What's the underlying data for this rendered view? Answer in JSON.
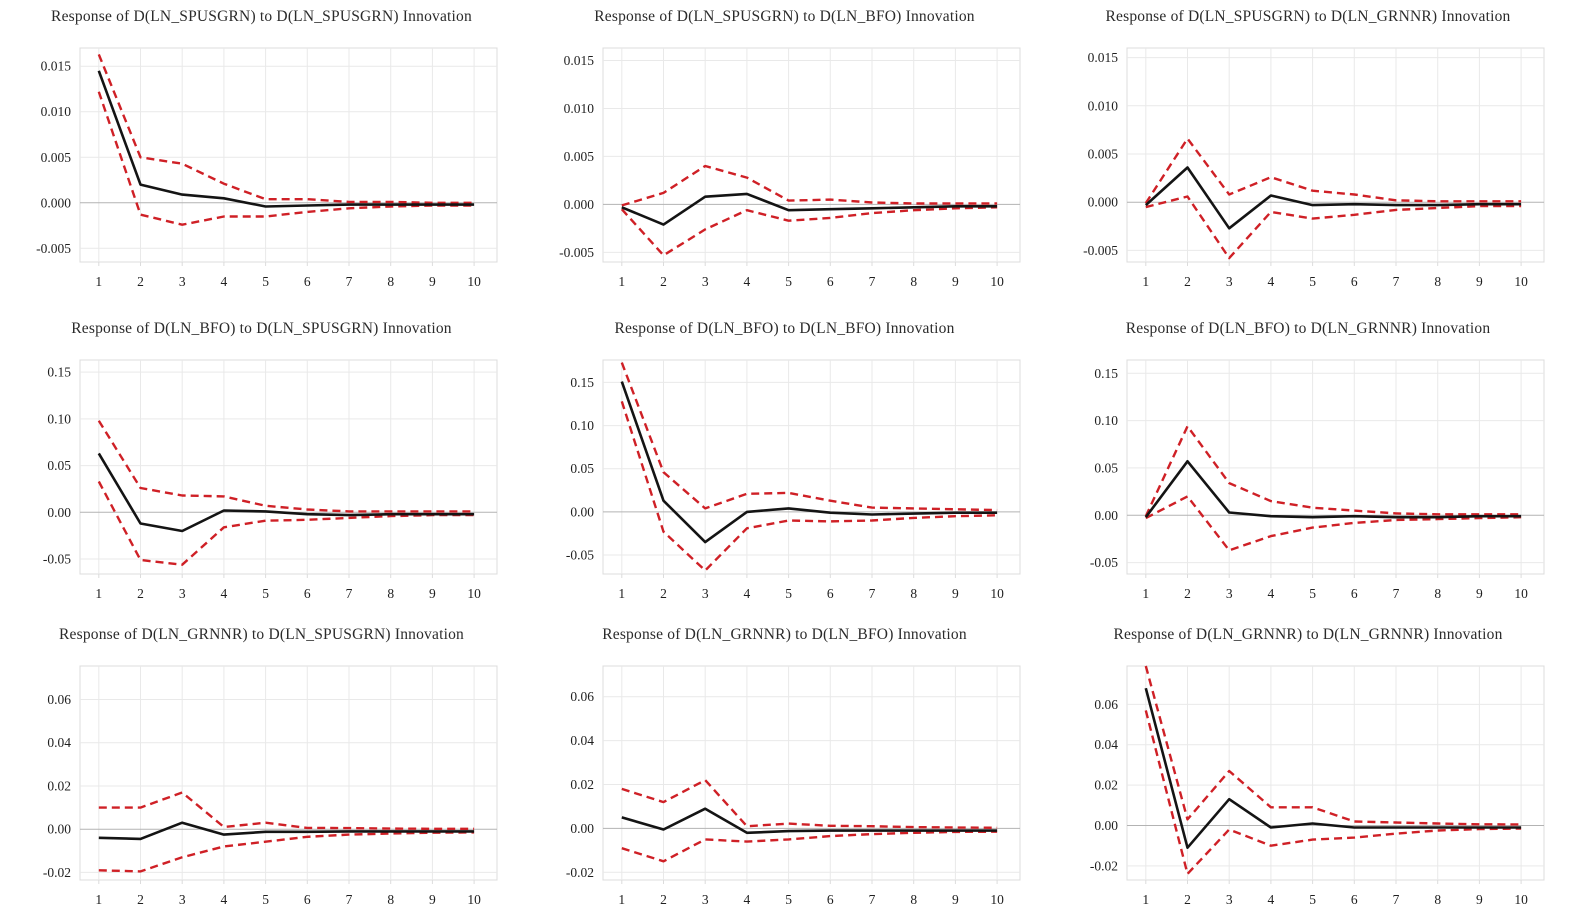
{
  "page": {
    "background": "#ffffff",
    "description_labels": []
  },
  "styles": {
    "line_color": "#141414",
    "band_color": "#cf2026",
    "grid_color": "#e9e9e9",
    "zero_line_color": "#b3b3b3",
    "frame_color": "#dcdcdc",
    "title_color": "#2b2b2b"
  },
  "chart_data": [
    {
      "type": "line",
      "title": "Response of D(LN_SPUSGRN) to D(LN_SPUSGRN) Innovation",
      "x": [
        1,
        2,
        3,
        4,
        5,
        6,
        7,
        8,
        9,
        10
      ],
      "series": [
        {
          "name": "response",
          "values": [
            0.0145,
            0.002,
            0.0009,
            0.0005,
            -0.0004,
            -0.0003,
            -0.0002,
            -0.0002,
            -0.0002,
            -0.0002
          ]
        },
        {
          "name": "upper_band_plus_2se",
          "values": [
            0.0163,
            0.005,
            0.0043,
            0.0021,
            0.0004,
            0.0004,
            0.0001,
            0.0001,
            0.0,
            0.0
          ]
        },
        {
          "name": "lower_band_minus_2se",
          "values": [
            0.0122,
            -0.0013,
            -0.0024,
            -0.0015,
            -0.0015,
            -0.001,
            -0.0006,
            -0.0004,
            -0.0003,
            -0.0003
          ]
        }
      ],
      "ylim": [
        -0.0065,
        0.017
      ],
      "ytick_values": [
        0.015,
        0.01,
        0.005,
        0.0,
        -0.005
      ],
      "ytick_labels": [
        "0.015",
        "0.010",
        "0.005",
        "0.000",
        "-0.005"
      ],
      "grid": true,
      "legend": "none"
    },
    {
      "type": "line",
      "title": "Response of D(LN_SPUSGRN) to D(LN_BFO) Innovation",
      "x": [
        1,
        2,
        3,
        4,
        5,
        6,
        7,
        8,
        9,
        10
      ],
      "series": [
        {
          "name": "response",
          "values": [
            -0.0003,
            -0.0021,
            0.0008,
            0.0011,
            -0.0006,
            -0.0005,
            -0.0004,
            -0.0003,
            -0.0002,
            -0.0002
          ]
        },
        {
          "name": "upper_band_plus_2se",
          "values": [
            -0.0001,
            0.0012,
            0.004,
            0.0028,
            0.0004,
            0.0005,
            0.0002,
            0.0001,
            0.0001,
            0.0001
          ]
        },
        {
          "name": "lower_band_minus_2se",
          "values": [
            -0.0005,
            -0.0053,
            -0.0026,
            -0.0006,
            -0.0017,
            -0.0014,
            -0.0009,
            -0.0006,
            -0.0004,
            -0.0003
          ]
        }
      ],
      "ylim": [
        -0.006,
        0.0163
      ],
      "ytick_values": [
        0.015,
        0.01,
        0.005,
        0.0,
        -0.005
      ],
      "ytick_labels": [
        "0.015",
        "0.010",
        "0.005",
        "0.000",
        "-0.005"
      ],
      "grid": true,
      "legend": "none"
    },
    {
      "type": "line",
      "title": "Response of D(LN_SPUSGRN) to D(LN_GRNNR) Innovation",
      "x": [
        1,
        2,
        3,
        4,
        5,
        6,
        7,
        8,
        9,
        10
      ],
      "series": [
        {
          "name": "response",
          "values": [
            -0.0003,
            0.0036,
            -0.0027,
            0.0007,
            -0.0003,
            -0.0002,
            -0.0003,
            -0.0003,
            -0.0002,
            -0.0002
          ]
        },
        {
          "name": "upper_band_plus_2se",
          "values": [
            -0.0001,
            0.0066,
            0.0008,
            0.0026,
            0.0012,
            0.0008,
            0.0002,
            0.0001,
            0.0001,
            0.0001
          ]
        },
        {
          "name": "lower_band_minus_2se",
          "values": [
            -0.0005,
            0.0006,
            -0.0058,
            -0.001,
            -0.0017,
            -0.0013,
            -0.0008,
            -0.0006,
            -0.0004,
            -0.0004
          ]
        }
      ],
      "ylim": [
        -0.0062,
        0.016
      ],
      "ytick_values": [
        0.015,
        0.01,
        0.005,
        0.0,
        -0.005
      ],
      "ytick_labels": [
        "0.015",
        "0.010",
        "0.005",
        "0.000",
        "-0.005"
      ],
      "grid": true,
      "legend": "none"
    },
    {
      "type": "line",
      "title": "Response of D(LN_BFO) to D(LN_SPUSGRN) Innovation",
      "x": [
        1,
        2,
        3,
        4,
        5,
        6,
        7,
        8,
        9,
        10
      ],
      "series": [
        {
          "name": "response",
          "values": [
            0.063,
            -0.012,
            -0.02,
            0.002,
            0.001,
            -0.002,
            -0.003,
            -0.002,
            -0.002,
            -0.002
          ]
        },
        {
          "name": "upper_band_plus_2se",
          "values": [
            0.098,
            0.026,
            0.018,
            0.017,
            0.007,
            0.003,
            0.001,
            0.001,
            0.001,
            0.001
          ]
        },
        {
          "name": "lower_band_minus_2se",
          "values": [
            0.033,
            -0.051,
            -0.056,
            -0.016,
            -0.009,
            -0.008,
            -0.006,
            -0.004,
            -0.003,
            -0.003
          ]
        }
      ],
      "ylim": [
        -0.066,
        0.163
      ],
      "ytick_values": [
        0.15,
        0.1,
        0.05,
        0.0,
        -0.05
      ],
      "ytick_labels": [
        "0.15",
        "0.10",
        "0.05",
        "0.00",
        "-0.05"
      ],
      "grid": true,
      "legend": "none"
    },
    {
      "type": "line",
      "title": "Response of D(LN_BFO) to D(LN_BFO) Innovation",
      "x": [
        1,
        2,
        3,
        4,
        5,
        6,
        7,
        8,
        9,
        10
      ],
      "series": [
        {
          "name": "response",
          "values": [
            0.151,
            0.013,
            -0.035,
            0.0,
            0.004,
            -0.001,
            -0.003,
            -0.002,
            -0.001,
            -0.001
          ]
        },
        {
          "name": "upper_band_plus_2se",
          "values": [
            0.173,
            0.046,
            0.004,
            0.021,
            0.022,
            0.013,
            0.005,
            0.004,
            0.003,
            0.002
          ]
        },
        {
          "name": "lower_band_minus_2se",
          "values": [
            0.128,
            -0.023,
            -0.068,
            -0.019,
            -0.01,
            -0.011,
            -0.01,
            -0.007,
            -0.005,
            -0.004
          ]
        }
      ],
      "ylim": [
        -0.072,
        0.176
      ],
      "ytick_values": [
        0.15,
        0.1,
        0.05,
        0.0,
        -0.05
      ],
      "ytick_labels": [
        "0.15",
        "0.10",
        "0.05",
        "0.00",
        "-0.05"
      ],
      "grid": true,
      "legend": "none"
    },
    {
      "type": "line",
      "title": "Response of D(LN_BFO) to D(LN_GRNNR) Innovation",
      "x": [
        1,
        2,
        3,
        4,
        5,
        6,
        7,
        8,
        9,
        10
      ],
      "series": [
        {
          "name": "response",
          "values": [
            -0.002,
            0.057,
            0.003,
            -0.001,
            -0.002,
            -0.001,
            -0.002,
            -0.002,
            -0.001,
            -0.001
          ]
        },
        {
          "name": "upper_band_plus_2se",
          "values": [
            -0.001,
            0.094,
            0.034,
            0.015,
            0.008,
            0.005,
            0.002,
            0.001,
            0.001,
            0.001
          ]
        },
        {
          "name": "lower_band_minus_2se",
          "values": [
            -0.003,
            0.02,
            -0.037,
            -0.022,
            -0.013,
            -0.008,
            -0.005,
            -0.004,
            -0.003,
            -0.002
          ]
        }
      ],
      "ylim": [
        -0.062,
        0.164
      ],
      "ytick_values": [
        0.15,
        0.1,
        0.05,
        0.0,
        -0.05
      ],
      "ytick_labels": [
        "0.15",
        "0.10",
        "0.05",
        "0.00",
        "-0.05"
      ],
      "grid": true,
      "legend": "none"
    },
    {
      "type": "line",
      "title": "Response of D(LN_GRNNR) to D(LN_SPUSGRN) Innovation",
      "x": [
        1,
        2,
        3,
        4,
        5,
        6,
        7,
        8,
        9,
        10
      ],
      "series": [
        {
          "name": "response",
          "values": [
            -0.004,
            -0.0045,
            0.003,
            -0.0025,
            -0.0012,
            -0.0012,
            -0.001,
            -0.001,
            -0.001,
            -0.001
          ]
        },
        {
          "name": "upper_band_plus_2se",
          "values": [
            0.01,
            0.01,
            0.017,
            0.001,
            0.003,
            0.0006,
            0.0005,
            0.0003,
            0.0002,
            0.0002
          ]
        },
        {
          "name": "lower_band_minus_2se",
          "values": [
            -0.019,
            -0.0195,
            -0.013,
            -0.008,
            -0.0058,
            -0.0035,
            -0.0025,
            -0.002,
            -0.0016,
            -0.0015
          ]
        }
      ],
      "ylim": [
        -0.0235,
        0.0755
      ],
      "ytick_values": [
        0.06,
        0.04,
        0.02,
        0.0,
        -0.02
      ],
      "ytick_labels": [
        "0.06",
        "0.04",
        "0.02",
        "0.00",
        "-0.02"
      ],
      "grid": true,
      "legend": "none"
    },
    {
      "type": "line",
      "title": "Response of D(LN_GRNNR) to D(LN_BFO) Innovation",
      "x": [
        1,
        2,
        3,
        4,
        5,
        6,
        7,
        8,
        9,
        10
      ],
      "series": [
        {
          "name": "response",
          "values": [
            0.005,
            -0.0005,
            0.009,
            -0.002,
            -0.0012,
            -0.001,
            -0.001,
            -0.001,
            -0.001,
            -0.001
          ]
        },
        {
          "name": "upper_band_plus_2se",
          "values": [
            0.018,
            0.012,
            0.022,
            0.001,
            0.0022,
            0.0012,
            0.001,
            0.0006,
            0.0004,
            0.0003
          ]
        },
        {
          "name": "lower_band_minus_2se",
          "values": [
            -0.009,
            -0.015,
            -0.005,
            -0.006,
            -0.005,
            -0.0035,
            -0.0026,
            -0.002,
            -0.0016,
            -0.0015
          ]
        }
      ],
      "ylim": [
        -0.0235,
        0.074
      ],
      "ytick_values": [
        0.06,
        0.04,
        0.02,
        0.0,
        -0.02
      ],
      "ytick_labels": [
        "0.06",
        "0.04",
        "0.02",
        "0.00",
        "-0.02"
      ],
      "grid": true,
      "legend": "none"
    },
    {
      "type": "line",
      "title": "Response of D(LN_GRNNR) to D(LN_GRNNR) Innovation",
      "x": [
        1,
        2,
        3,
        4,
        5,
        6,
        7,
        8,
        9,
        10
      ],
      "series": [
        {
          "name": "response",
          "values": [
            0.068,
            -0.011,
            0.013,
            -0.001,
            0.001,
            -0.001,
            -0.001,
            -0.001,
            -0.001,
            -0.001
          ]
        },
        {
          "name": "upper_band_plus_2se",
          "values": [
            0.079,
            0.003,
            0.027,
            0.009,
            0.009,
            0.002,
            0.0015,
            0.001,
            0.0006,
            0.0005
          ]
        },
        {
          "name": "lower_band_minus_2se",
          "values": [
            0.057,
            -0.024,
            -0.002,
            -0.01,
            -0.007,
            -0.006,
            -0.004,
            -0.0025,
            -0.0018,
            -0.0015
          ]
        }
      ],
      "ylim": [
        -0.027,
        0.079
      ],
      "ytick_values": [
        0.06,
        0.04,
        0.02,
        0.0,
        -0.02
      ],
      "ytick_labels": [
        "0.06",
        "0.04",
        "0.02",
        "0.00",
        "-0.02"
      ],
      "grid": true,
      "legend": "none"
    }
  ]
}
